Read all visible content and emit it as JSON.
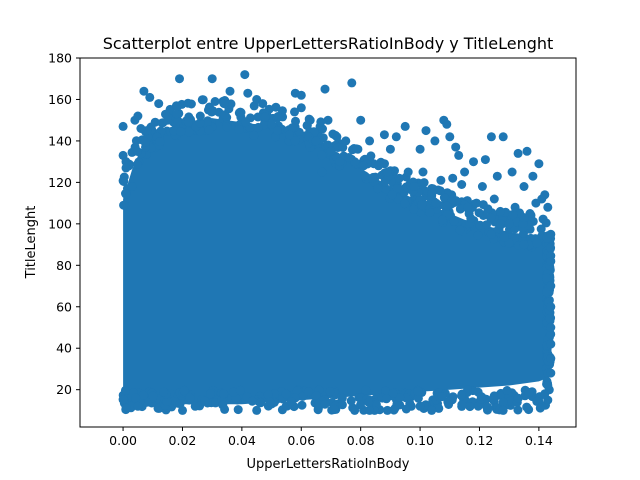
{
  "chart_data": {
    "type": "scatter",
    "title": "Scatterplot entre UpperLettersRatioInBody y TitleLenght",
    "xlabel": "UpperLettersRatioInBody",
    "ylabel": "TitleLenght",
    "xlim": [
      -0.0145,
      0.1525
    ],
    "ylim": [
      2,
      180
    ],
    "xticks": [
      0.0,
      0.02,
      0.04,
      0.06,
      0.08,
      0.1,
      0.12,
      0.14
    ],
    "xtick_labels": [
      "0.00",
      "0.02",
      "0.04",
      "0.06",
      "0.08",
      "0.10",
      "0.12",
      "0.14"
    ],
    "yticks": [
      20,
      40,
      60,
      80,
      100,
      120,
      140,
      160,
      180
    ],
    "ytick_labels": [
      "20",
      "40",
      "60",
      "80",
      "100",
      "120",
      "140",
      "160",
      "180"
    ],
    "grid": false,
    "series": [
      {
        "color": "#1f77b4",
        "points": [
          [
            0.0,
            147
          ],
          [
            0.0,
            133
          ],
          [
            0.001,
            130
          ],
          [
            0.002,
            128
          ],
          [
            0.001,
            127
          ],
          [
            0.003,
            118
          ],
          [
            0.004,
            150
          ],
          [
            0.005,
            152
          ],
          [
            0.006,
            146
          ],
          [
            0.007,
            164
          ],
          [
            0.009,
            161
          ],
          [
            0.012,
            158
          ],
          [
            0.015,
            150
          ],
          [
            0.018,
            153
          ],
          [
            0.019,
            170
          ],
          [
            0.022,
            149
          ],
          [
            0.026,
            152
          ],
          [
            0.03,
            170
          ],
          [
            0.031,
            159
          ],
          [
            0.034,
            158
          ],
          [
            0.036,
            164
          ],
          [
            0.041,
            172
          ],
          [
            0.042,
            163
          ],
          [
            0.045,
            160
          ],
          [
            0.047,
            158
          ],
          [
            0.05,
            148
          ],
          [
            0.052,
            145
          ],
          [
            0.058,
            163
          ],
          [
            0.06,
            162
          ],
          [
            0.06,
            156
          ],
          [
            0.063,
            150
          ],
          [
            0.068,
            165
          ],
          [
            0.069,
            150
          ],
          [
            0.072,
            142
          ],
          [
            0.075,
            140
          ],
          [
            0.077,
            168
          ],
          [
            0.08,
            150
          ],
          [
            0.083,
            140
          ],
          [
            0.088,
            143
          ],
          [
            0.09,
            136
          ],
          [
            0.092,
            142
          ],
          [
            0.095,
            147
          ],
          [
            0.1,
            136
          ],
          [
            0.102,
            145
          ],
          [
            0.105,
            140
          ],
          [
            0.108,
            150
          ],
          [
            0.109,
            148
          ],
          [
            0.11,
            142
          ],
          [
            0.112,
            137
          ],
          [
            0.113,
            133
          ],
          [
            0.115,
            125
          ],
          [
            0.118,
            130
          ],
          [
            0.122,
            131
          ],
          [
            0.124,
            142
          ],
          [
            0.126,
            123
          ],
          [
            0.128,
            142
          ],
          [
            0.131,
            125
          ],
          [
            0.133,
            134
          ],
          [
            0.135,
            118
          ],
          [
            0.136,
            135
          ],
          [
            0.138,
            123
          ],
          [
            0.14,
            129
          ],
          [
            0.142,
            114
          ],
          [
            0.143,
            108
          ],
          [
            0.141,
            112
          ],
          [
            0.139,
            110
          ],
          [
            0.137,
            105
          ],
          [
            0.135,
            103
          ],
          [
            0.132,
            108
          ],
          [
            0.13,
            100
          ],
          [
            0.127,
            106
          ],
          [
            0.125,
            112
          ],
          [
            0.121,
            118
          ],
          [
            0.119,
            110
          ],
          [
            0.116,
            108
          ],
          [
            0.114,
            119
          ],
          [
            0.111,
            122
          ],
          [
            0.107,
            121
          ],
          [
            0.104,
            115
          ],
          [
            0.101,
            125
          ],
          [
            0.098,
            118
          ],
          [
            0.096,
            125
          ],
          [
            0.093,
            122
          ],
          [
            0.089,
            125
          ],
          [
            0.086,
            128
          ],
          [
            0.084,
            122
          ],
          [
            0.081,
            128
          ],
          [
            0.078,
            130
          ],
          [
            0.076,
            132
          ],
          [
            0.073,
            130
          ],
          [
            0.07,
            135
          ],
          [
            0.067,
            125
          ],
          [
            0.065,
            140
          ],
          [
            0.128,
            10
          ],
          [
            0.001,
            11
          ],
          [
            0.005,
            12
          ],
          [
            0.02,
            10
          ],
          [
            0.045,
            10
          ],
          [
            0.078,
            10
          ],
          [
            0.083,
            10
          ],
          [
            0.089,
            10
          ],
          [
            0.1,
            12
          ],
          [
            0.143,
            15
          ],
          [
            0.142,
            18
          ],
          [
            0.143,
            22
          ],
          [
            0.144,
            95
          ],
          [
            0.144,
            82
          ],
          [
            0.144,
            70
          ],
          [
            0.144,
            60
          ],
          [
            0.144,
            50
          ],
          [
            0.144,
            42
          ],
          [
            0.144,
            35
          ],
          [
            0.144,
            28
          ]
        ]
      }
    ]
  }
}
